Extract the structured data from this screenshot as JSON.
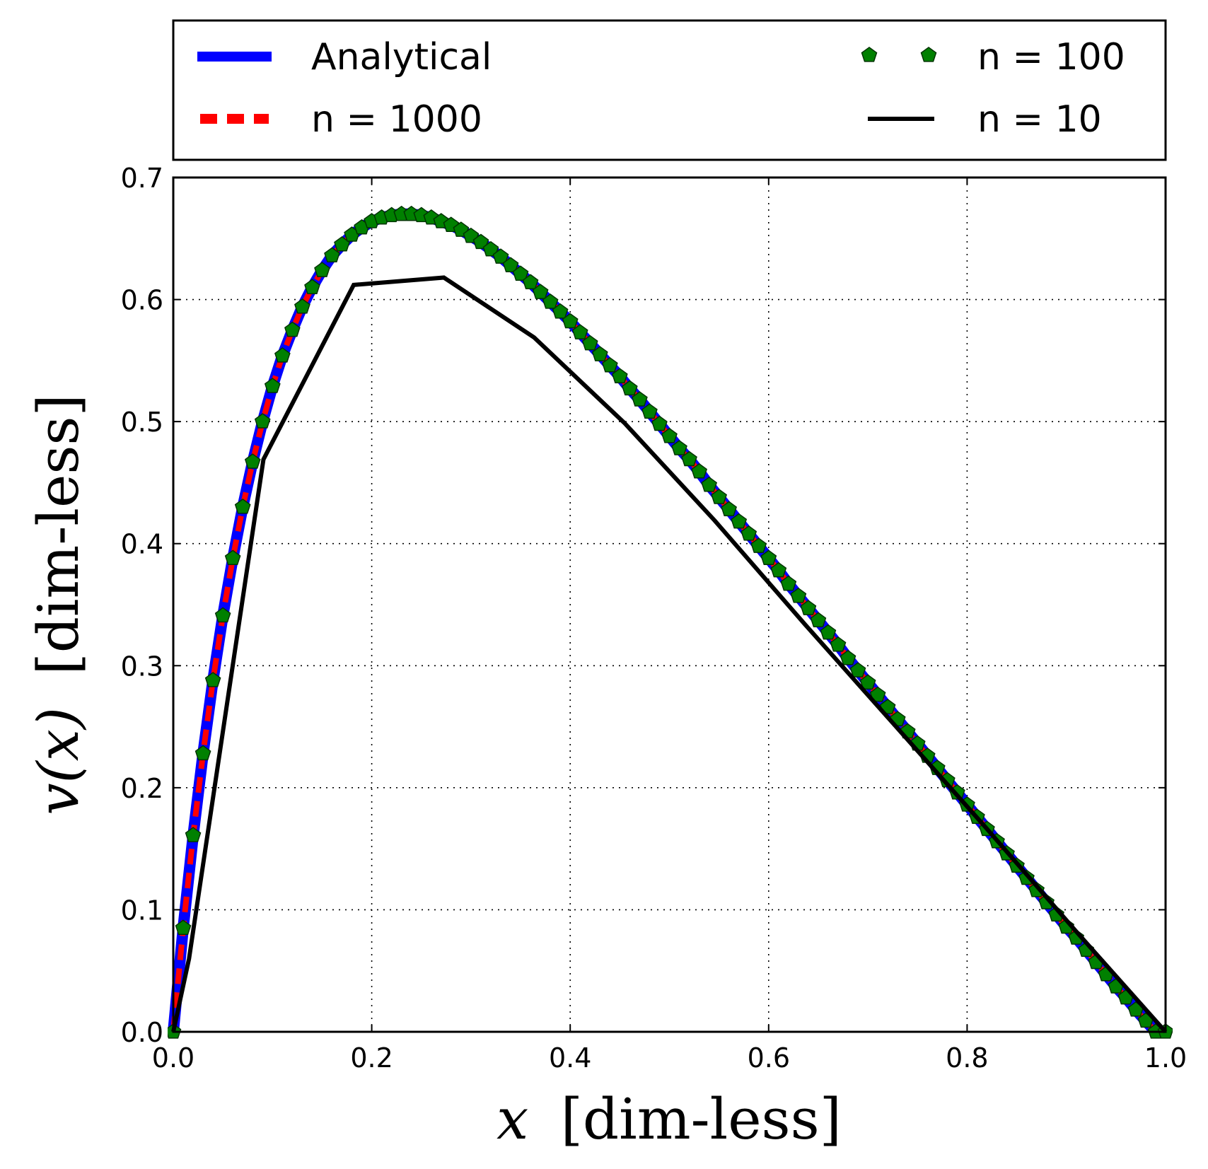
{
  "chart_data": {
    "type": "line",
    "xlabel_var": "x",
    "xlabel_unit": "[dim-less]",
    "ylabel_var": "v(x)",
    "ylabel_unit": "[dim-less]",
    "xlim": [
      0.0,
      1.0
    ],
    "ylim": [
      0.0,
      0.7
    ],
    "xticks": [
      "0.0",
      "0.2",
      "0.4",
      "0.6",
      "0.8",
      "1.0"
    ],
    "yticks": [
      "0.0",
      "0.1",
      "0.2",
      "0.3",
      "0.4",
      "0.5",
      "0.6",
      "0.7"
    ],
    "grid": true,
    "legend_placement": "top (outside, above plot)",
    "series": [
      {
        "name": "Analytical",
        "color": "#0000ff",
        "style": "solid-thick",
        "x": [
          0.0,
          0.01,
          0.02,
          0.03,
          0.04,
          0.05,
          0.06,
          0.07,
          0.08,
          0.09,
          0.1,
          0.11,
          0.12,
          0.13,
          0.14,
          0.15,
          0.16,
          0.17,
          0.18,
          0.19,
          0.2,
          0.21,
          0.22,
          0.23,
          0.24,
          0.25,
          0.26,
          0.27,
          0.28,
          0.29,
          0.3,
          0.31,
          0.32,
          0.33,
          0.34,
          0.35,
          0.36,
          0.37,
          0.38,
          0.39,
          0.4,
          0.41,
          0.42,
          0.43,
          0.44,
          0.45,
          0.46,
          0.47,
          0.48,
          0.49,
          0.5,
          0.51,
          0.52,
          0.53,
          0.54,
          0.55,
          0.56,
          0.57,
          0.58,
          0.59,
          0.6,
          0.61,
          0.62,
          0.63,
          0.64,
          0.65,
          0.66,
          0.67,
          0.68,
          0.69,
          0.7,
          0.71,
          0.72,
          0.73,
          0.74,
          0.75,
          0.76,
          0.77,
          0.78,
          0.79,
          0.8,
          0.81,
          0.82,
          0.83,
          0.84,
          0.85,
          0.86,
          0.87,
          0.88,
          0.89,
          0.9,
          0.91,
          0.92,
          0.93,
          0.94,
          0.95,
          0.96,
          0.97,
          0.98,
          0.99,
          1.0
        ],
        "y": [
          0.0,
          0.085,
          0.161,
          0.228,
          0.288,
          0.341,
          0.388,
          0.43,
          0.467,
          0.5,
          0.529,
          0.554,
          0.575,
          0.594,
          0.61,
          0.624,
          0.636,
          0.645,
          0.653,
          0.659,
          0.664,
          0.667,
          0.669,
          0.67,
          0.67,
          0.669,
          0.667,
          0.664,
          0.661,
          0.657,
          0.652,
          0.647,
          0.641,
          0.635,
          0.628,
          0.621,
          0.614,
          0.606,
          0.598,
          0.59,
          0.582,
          0.573,
          0.564,
          0.555,
          0.546,
          0.537,
          0.527,
          0.518,
          0.508,
          0.498,
          0.488,
          0.478,
          0.469,
          0.459,
          0.448,
          0.438,
          0.428,
          0.418,
          0.408,
          0.398,
          0.388,
          0.378,
          0.367,
          0.357,
          0.347,
          0.337,
          0.327,
          0.317,
          0.306,
          0.296,
          0.286,
          0.276,
          0.266,
          0.256,
          0.246,
          0.236,
          0.226,
          0.216,
          0.206,
          0.196,
          0.186,
          0.176,
          0.166,
          0.156,
          0.146,
          0.136,
          0.126,
          0.116,
          0.106,
          0.096,
          0.086,
          0.077,
          0.067,
          0.057,
          0.047,
          0.037,
          0.028,
          0.018,
          0.009,
          0.0,
          0.0
        ]
      },
      {
        "name": "n = 1000",
        "color": "#ff0000",
        "style": "dashed",
        "x": [
          0.0,
          0.01,
          0.02,
          0.03,
          0.04,
          0.05,
          0.06,
          0.07,
          0.08,
          0.09,
          0.1,
          0.11,
          0.12,
          0.13,
          0.14,
          0.15,
          0.16,
          0.17,
          0.18,
          0.19,
          0.2,
          0.21,
          0.22,
          0.23,
          0.24,
          0.25,
          0.26,
          0.27,
          0.28,
          0.29,
          0.3,
          0.31,
          0.32,
          0.33,
          0.34,
          0.35,
          0.36,
          0.37,
          0.38,
          0.39,
          0.4,
          0.41,
          0.42,
          0.43,
          0.44,
          0.45,
          0.46,
          0.47,
          0.48,
          0.49,
          0.5,
          0.51,
          0.52,
          0.53,
          0.54,
          0.55,
          0.56,
          0.57,
          0.58,
          0.59,
          0.6,
          0.61,
          0.62,
          0.63,
          0.64,
          0.65,
          0.66,
          0.67,
          0.68,
          0.69,
          0.7,
          0.71,
          0.72,
          0.73,
          0.74,
          0.75,
          0.76,
          0.77,
          0.78,
          0.79,
          0.8,
          0.81,
          0.82,
          0.83,
          0.84,
          0.85,
          0.86,
          0.87,
          0.88,
          0.89,
          0.9,
          0.91,
          0.92,
          0.93,
          0.94,
          0.95,
          0.96,
          0.97,
          0.98,
          0.99,
          1.0
        ],
        "y": [
          0.0,
          0.085,
          0.161,
          0.228,
          0.288,
          0.341,
          0.388,
          0.43,
          0.467,
          0.5,
          0.529,
          0.554,
          0.575,
          0.594,
          0.61,
          0.624,
          0.636,
          0.645,
          0.653,
          0.659,
          0.664,
          0.667,
          0.669,
          0.67,
          0.67,
          0.669,
          0.667,
          0.664,
          0.661,
          0.657,
          0.652,
          0.647,
          0.641,
          0.635,
          0.628,
          0.621,
          0.614,
          0.606,
          0.598,
          0.59,
          0.582,
          0.573,
          0.564,
          0.555,
          0.546,
          0.537,
          0.527,
          0.518,
          0.508,
          0.498,
          0.488,
          0.478,
          0.469,
          0.459,
          0.448,
          0.438,
          0.428,
          0.418,
          0.408,
          0.398,
          0.388,
          0.378,
          0.367,
          0.357,
          0.347,
          0.337,
          0.327,
          0.317,
          0.306,
          0.296,
          0.286,
          0.276,
          0.266,
          0.256,
          0.246,
          0.236,
          0.226,
          0.216,
          0.206,
          0.196,
          0.186,
          0.176,
          0.166,
          0.156,
          0.146,
          0.136,
          0.126,
          0.116,
          0.106,
          0.096,
          0.086,
          0.077,
          0.067,
          0.057,
          0.047,
          0.037,
          0.028,
          0.018,
          0.009,
          0.0,
          0.0
        ]
      },
      {
        "name": "n = 100",
        "color": "#008000",
        "style": "pentagon-markers",
        "x": [
          0.0,
          0.01,
          0.02,
          0.03,
          0.04,
          0.05,
          0.06,
          0.07,
          0.08,
          0.09,
          0.1,
          0.11,
          0.12,
          0.13,
          0.14,
          0.15,
          0.16,
          0.17,
          0.18,
          0.19,
          0.2,
          0.21,
          0.22,
          0.23,
          0.24,
          0.25,
          0.26,
          0.27,
          0.28,
          0.29,
          0.3,
          0.31,
          0.32,
          0.33,
          0.34,
          0.35,
          0.36,
          0.37,
          0.38,
          0.39,
          0.4,
          0.41,
          0.42,
          0.43,
          0.44,
          0.45,
          0.46,
          0.47,
          0.48,
          0.49,
          0.5,
          0.51,
          0.52,
          0.53,
          0.54,
          0.55,
          0.56,
          0.57,
          0.58,
          0.59,
          0.6,
          0.61,
          0.62,
          0.63,
          0.64,
          0.65,
          0.66,
          0.67,
          0.68,
          0.69,
          0.7,
          0.71,
          0.72,
          0.73,
          0.74,
          0.75,
          0.76,
          0.77,
          0.78,
          0.79,
          0.8,
          0.81,
          0.82,
          0.83,
          0.84,
          0.85,
          0.86,
          0.87,
          0.88,
          0.89,
          0.9,
          0.91,
          0.92,
          0.93,
          0.94,
          0.95,
          0.96,
          0.97,
          0.98,
          0.99,
          1.0
        ],
        "y": [
          0.0,
          0.085,
          0.161,
          0.228,
          0.288,
          0.341,
          0.388,
          0.43,
          0.467,
          0.5,
          0.529,
          0.554,
          0.575,
          0.594,
          0.61,
          0.624,
          0.636,
          0.645,
          0.653,
          0.659,
          0.664,
          0.667,
          0.669,
          0.67,
          0.67,
          0.669,
          0.667,
          0.664,
          0.661,
          0.657,
          0.652,
          0.647,
          0.641,
          0.635,
          0.628,
          0.621,
          0.614,
          0.606,
          0.598,
          0.59,
          0.582,
          0.573,
          0.564,
          0.555,
          0.546,
          0.537,
          0.527,
          0.518,
          0.508,
          0.498,
          0.488,
          0.478,
          0.469,
          0.459,
          0.448,
          0.438,
          0.428,
          0.418,
          0.408,
          0.398,
          0.388,
          0.378,
          0.367,
          0.357,
          0.347,
          0.337,
          0.327,
          0.317,
          0.306,
          0.296,
          0.286,
          0.276,
          0.266,
          0.256,
          0.246,
          0.236,
          0.226,
          0.216,
          0.206,
          0.196,
          0.186,
          0.176,
          0.166,
          0.156,
          0.146,
          0.136,
          0.126,
          0.116,
          0.106,
          0.096,
          0.086,
          0.077,
          0.067,
          0.057,
          0.047,
          0.037,
          0.028,
          0.018,
          0.009,
          0.0,
          0.0
        ]
      },
      {
        "name": "n = 10",
        "color": "#000000",
        "style": "solid",
        "x": [
          0.0,
          0.0159,
          0.0909,
          0.1818,
          0.2727,
          0.3636,
          0.4545,
          0.5455,
          0.6364,
          0.7273,
          0.8182,
          0.9091,
          1.0
        ],
        "y": [
          0.0,
          0.06,
          0.469,
          0.612,
          0.618,
          0.569,
          0.499,
          0.419,
          0.334,
          0.251,
          0.168,
          0.083,
          0.0
        ]
      }
    ]
  }
}
